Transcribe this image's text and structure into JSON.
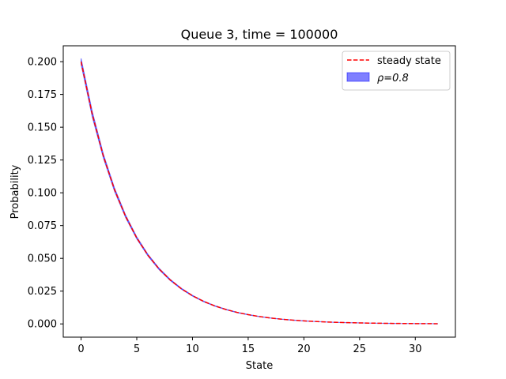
{
  "chart_data": {
    "type": "area",
    "title": "Queue 3, time = 100000",
    "xlabel": "State",
    "ylabel": "Probability",
    "xlim": [
      -1.6,
      33.6
    ],
    "ylim": [
      -0.0101,
      0.2121
    ],
    "x_ticks": [
      0,
      5,
      10,
      15,
      20,
      25,
      30
    ],
    "y_ticks": [
      0.0,
      0.025,
      0.05,
      0.075,
      0.1,
      0.125,
      0.15,
      0.175,
      0.2
    ],
    "y_tick_labels": [
      "0.000",
      "0.025",
      "0.050",
      "0.075",
      "0.100",
      "0.125",
      "0.150",
      "0.175",
      "0.200"
    ],
    "grid": false,
    "legend_position": "top-right",
    "series": [
      {
        "name": "steady state",
        "style": "dashed-line",
        "color": "#ff0000",
        "x": [
          0,
          1,
          2,
          3,
          4,
          5,
          6,
          7,
          8,
          9,
          10,
          11,
          12,
          13,
          14,
          15,
          16,
          17,
          18,
          19,
          20,
          21,
          22,
          23,
          24,
          25,
          26,
          27,
          28,
          29,
          30,
          31,
          32
        ],
        "values": [
          0.2,
          0.16,
          0.128,
          0.1024,
          0.08192,
          0.065536,
          0.052429,
          0.041943,
          0.033554,
          0.026844,
          0.021475,
          0.01718,
          0.013744,
          0.010995,
          0.008796,
          0.007037,
          0.00563,
          0.004504,
          0.003603,
          0.002882,
          0.002306,
          0.001845,
          0.001476,
          0.001181,
          0.000944,
          0.000756,
          0.000604,
          0.000484,
          0.000387,
          0.00031,
          0.000248,
          0.000198,
          0.000158
        ]
      },
      {
        "name": "ρ=0.8",
        "style": "band",
        "color": "#0000ff",
        "x": [
          0,
          1,
          2,
          3,
          4,
          5,
          6,
          7,
          8,
          9,
          10,
          11,
          12,
          13,
          14,
          15,
          16,
          17,
          18,
          19,
          20,
          21,
          22,
          23,
          24,
          25,
          26,
          27,
          28,
          29,
          30,
          31,
          32
        ],
        "lower": [
          0.198,
          0.158,
          0.1265,
          0.1012,
          0.081,
          0.0648,
          0.0518,
          0.0414,
          0.0331,
          0.0265,
          0.0212,
          0.0169,
          0.0135,
          0.0108,
          0.0086,
          0.0069,
          0.0055,
          0.0044,
          0.0035,
          0.0028,
          0.0022,
          0.0018,
          0.0014,
          0.0011,
          0.0009,
          0.0007,
          0.0006,
          0.0004,
          0.0003,
          0.0003,
          0.0002,
          0.0002,
          0.0001
        ],
        "upper": [
          0.2025,
          0.1622,
          0.1296,
          0.1037,
          0.083,
          0.0664,
          0.0531,
          0.0425,
          0.034,
          0.0272,
          0.0218,
          0.0174,
          0.0139,
          0.0112,
          0.0089,
          0.0072,
          0.0057,
          0.0046,
          0.0037,
          0.003,
          0.0024,
          0.0019,
          0.0015,
          0.0012,
          0.001,
          0.0008,
          0.0006,
          0.0005,
          0.0004,
          0.0003,
          0.0003,
          0.0002,
          0.0002
        ]
      }
    ]
  }
}
